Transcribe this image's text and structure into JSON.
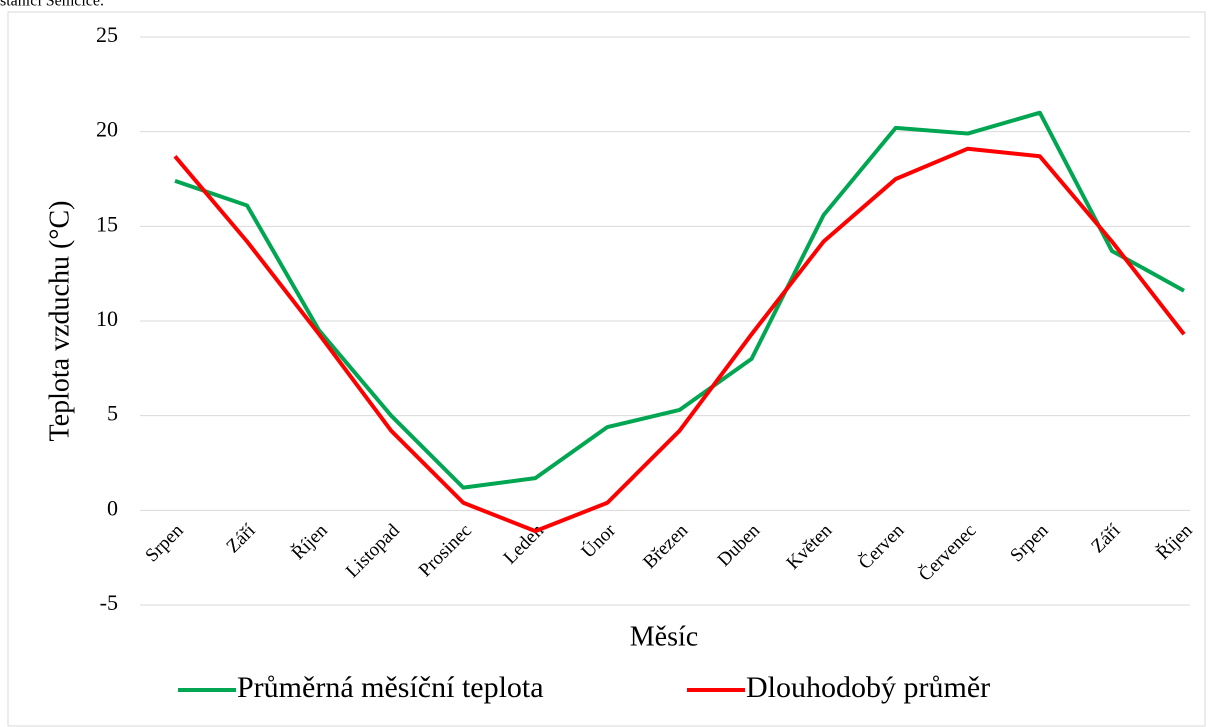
{
  "caption": "stanici Semčice.",
  "chart_data": {
    "type": "line",
    "x_label": "Měsíc",
    "y_label": "Teplota vzduchu (°C)",
    "categories": [
      "Srpen",
      "Září",
      "Říjen",
      "Listopad",
      "Prosinec",
      "Leden",
      "Únor",
      "Březen",
      "Duben",
      "Květen",
      "Červen",
      "Červenec",
      "Srpen",
      "Září",
      "Říjen"
    ],
    "series": [
      {
        "name": "Průměrná měsíční teplota",
        "color": "#00a651",
        "values": [
          17.4,
          16.1,
          9.5,
          5.0,
          1.2,
          1.7,
          4.4,
          5.3,
          8.0,
          15.6,
          20.2,
          19.9,
          21.0,
          13.7,
          11.6
        ]
      },
      {
        "name": "Dlouhodobý průměr",
        "color": "#ff0000",
        "values": [
          18.7,
          14.2,
          9.3,
          4.2,
          0.4,
          -1.1,
          0.4,
          4.2,
          9.3,
          14.2,
          17.5,
          19.1,
          18.7,
          14.2,
          9.3
        ]
      }
    ],
    "ylim": [
      -5,
      25
    ],
    "yticks": [
      -5,
      0,
      5,
      10,
      15,
      20,
      25
    ],
    "grid": true,
    "legend": "bottom"
  }
}
